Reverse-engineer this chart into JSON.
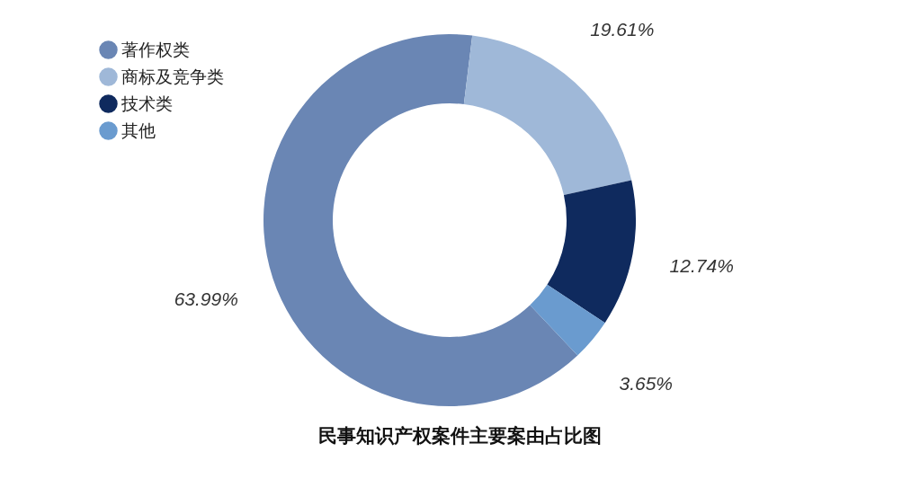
{
  "chart_data": {
    "type": "donut",
    "title": "民事知识产权案件主要案由占比图",
    "categories": [
      "著作权类",
      "商标及竞争类",
      "技术类",
      "其他"
    ],
    "values": [
      63.99,
      19.61,
      12.74,
      3.65
    ],
    "colors": [
      "#6a86b4",
      "#9fb8d8",
      "#0f2a5e",
      "#6a9bcf"
    ],
    "value_labels": [
      "63.99%",
      "19.61%",
      "12.74%",
      "3.65%"
    ],
    "legend": "top left"
  }
}
